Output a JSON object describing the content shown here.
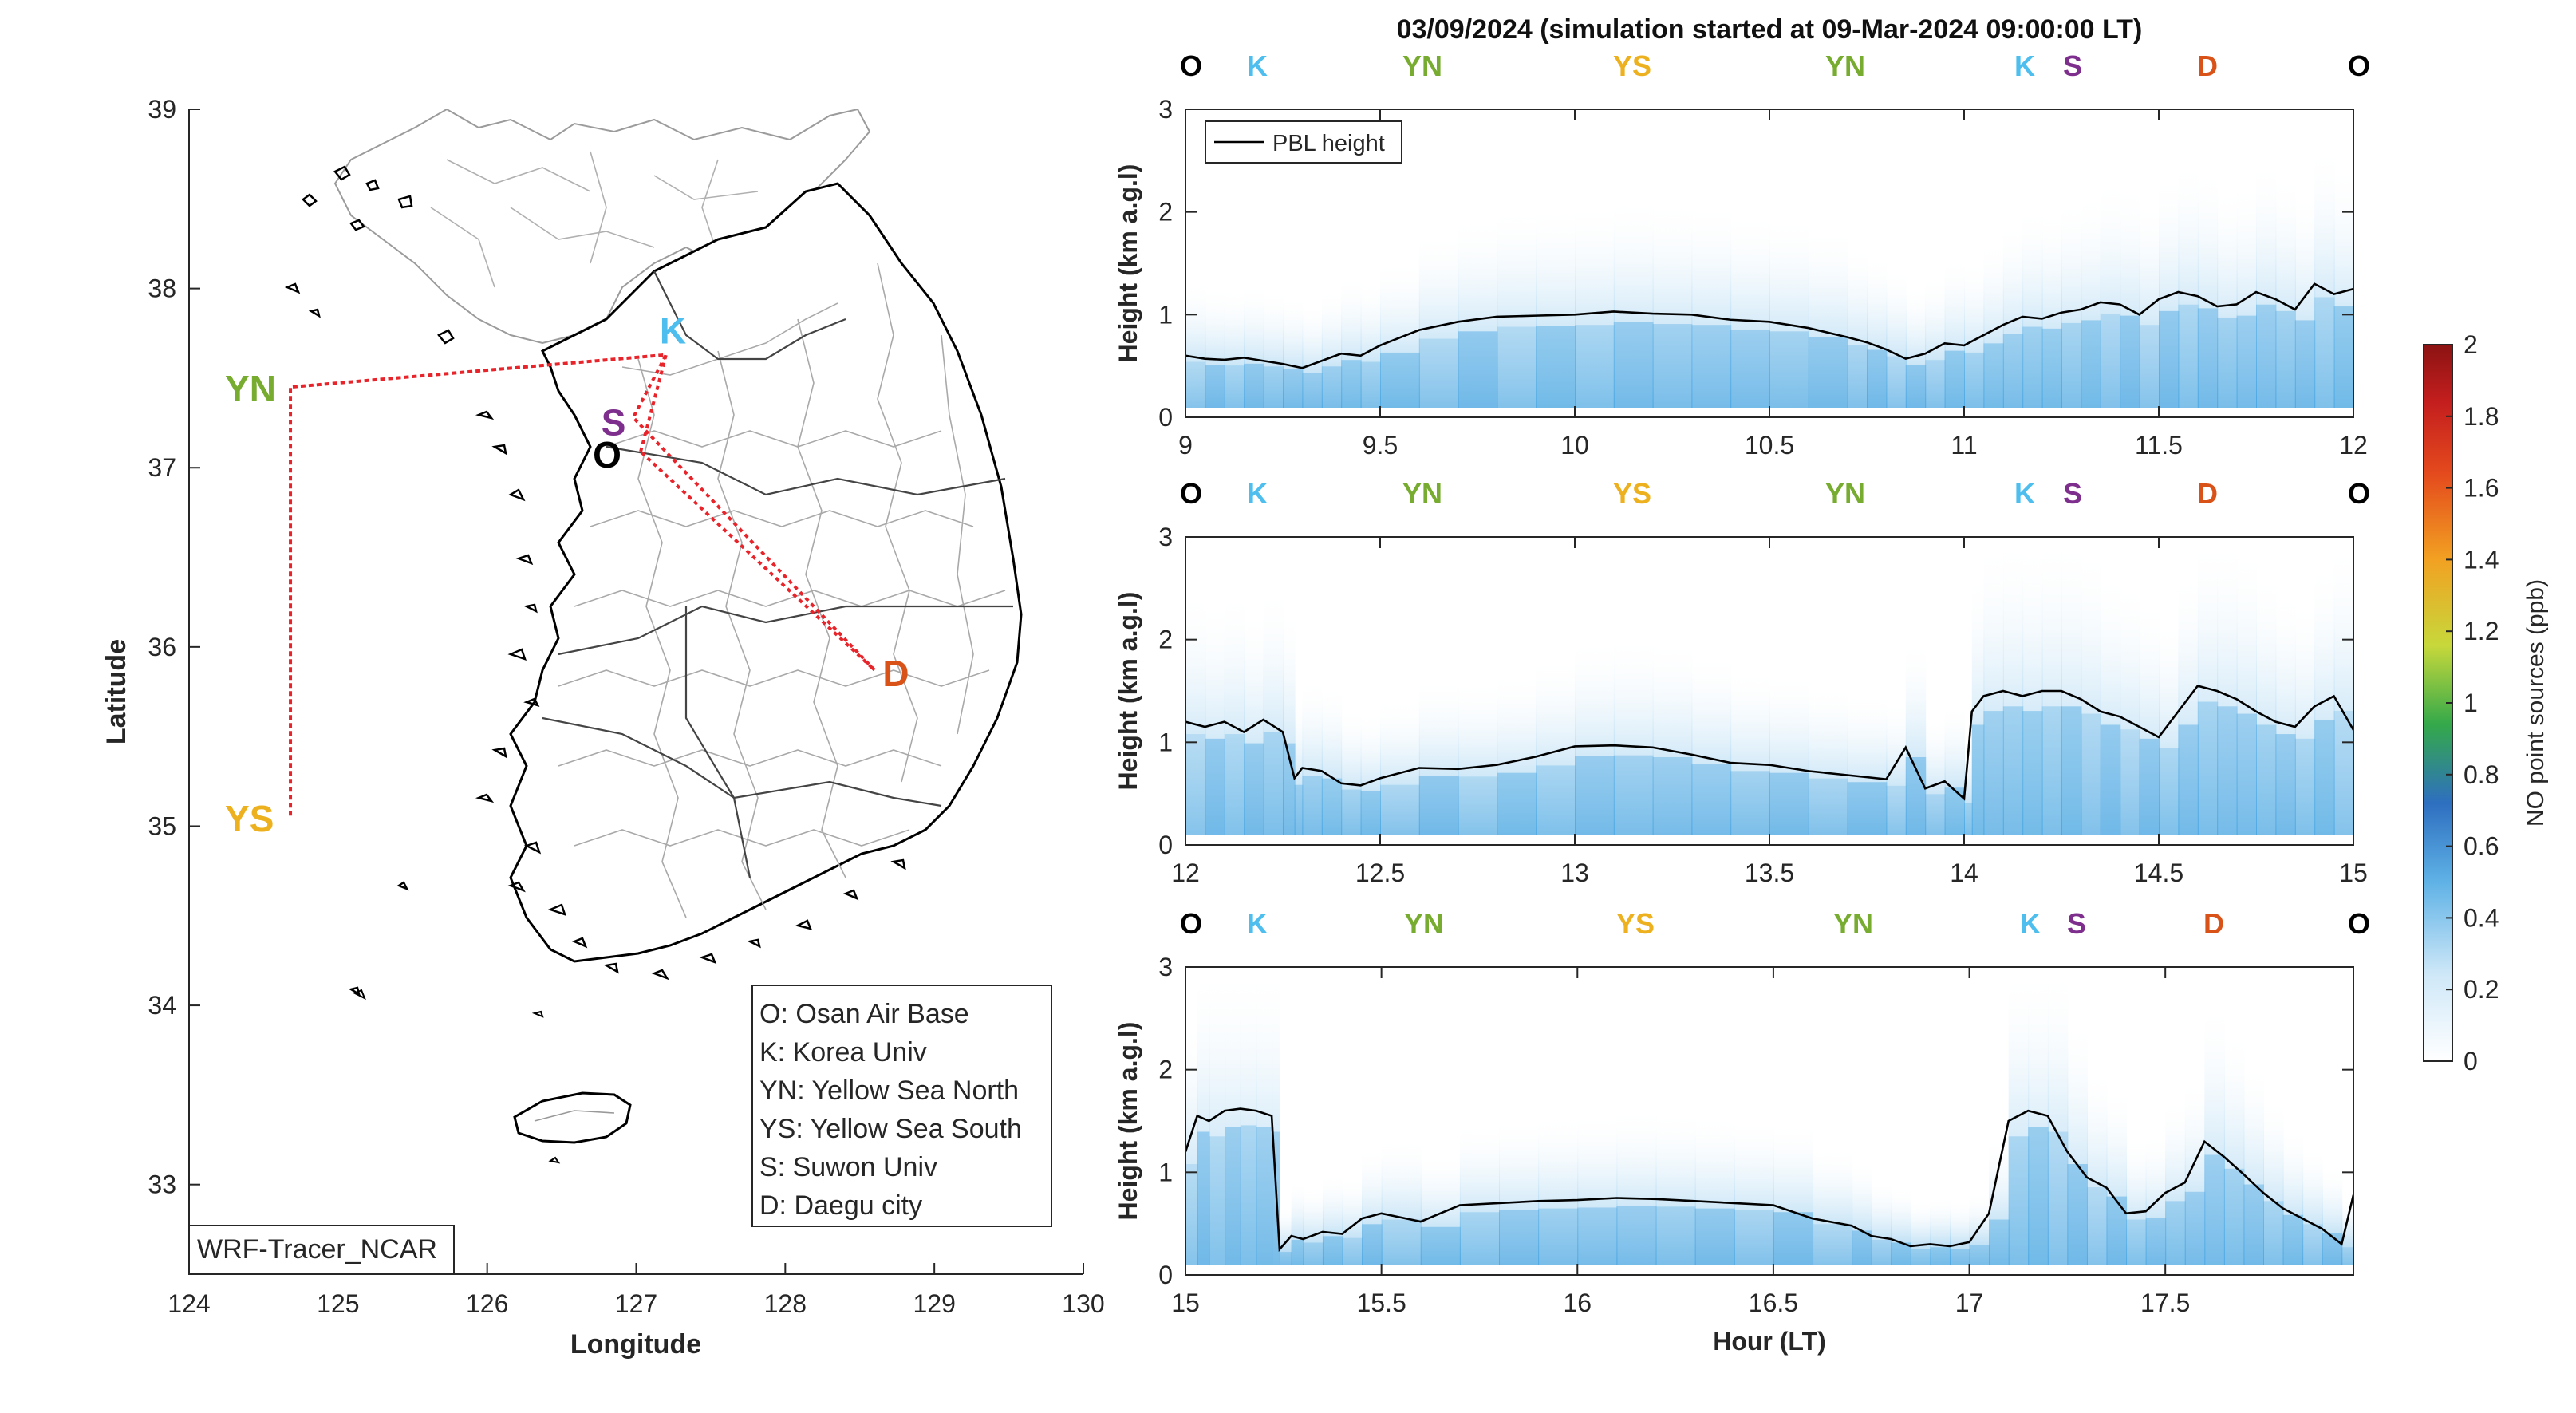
{
  "figure_title": "03/09/2024 (simulation started at 09-Mar-2024 09:00:00 LT)",
  "colors": {
    "site_O": "#000000",
    "site_K": "#4DBEEE",
    "site_YN": "#77AC30",
    "site_YS": "#EDB120",
    "site_S": "#7E2F8E",
    "site_D": "#D95319",
    "route": "#E8242B",
    "pbl": "#000000",
    "tracer": "#3FA1E0"
  },
  "map": {
    "xlabel": "Longitude",
    "ylabel": "Latitude",
    "xlim": [
      124,
      130
    ],
    "ylim": [
      32.5,
      39
    ],
    "xticks": [
      "124",
      "125",
      "126",
      "127",
      "128",
      "129",
      "130"
    ],
    "yticks": [
      "33",
      "34",
      "35",
      "36",
      "37",
      "38",
      "39"
    ],
    "model_tag": "WRF-Tracer_NCAR",
    "legend": [
      "O: Osan Air Base",
      "K: Korea Univ",
      "YN: Yellow Sea North",
      "YS: Yellow Sea South",
      "S: Suwon Univ",
      "D: Daegu city"
    ],
    "sites": [
      {
        "code": "K",
        "lon": 127.2,
        "lat": 37.63
      },
      {
        "code": "YN",
        "lon": 124.68,
        "lat": 37.45
      },
      {
        "code": "S",
        "lon": 126.98,
        "lat": 37.28
      },
      {
        "code": "O",
        "lon": 127.03,
        "lat": 37.09
      },
      {
        "code": "YS",
        "lon": 124.68,
        "lat": 35.05
      },
      {
        "code": "D",
        "lon": 128.6,
        "lat": 35.87
      }
    ],
    "route": [
      [
        127.03,
        37.09
      ],
      [
        127.2,
        37.63
      ],
      [
        124.68,
        37.45
      ],
      [
        124.68,
        35.05
      ],
      [
        124.68,
        37.45
      ],
      [
        127.2,
        37.63
      ],
      [
        126.98,
        37.28
      ],
      [
        128.6,
        35.87
      ],
      [
        127.03,
        37.09
      ]
    ]
  },
  "chart_data": [
    {
      "type": "line",
      "title": "03/09/2024 (simulation started at 09-Mar-2024 09:00:00 LT)",
      "xlabel": "",
      "ylabel": "Height (km a.g.l)",
      "xlim": [
        9,
        12
      ],
      "ylim": [
        0,
        3
      ],
      "xticks": [
        "9",
        "9.5",
        "10",
        "10.5",
        "11",
        "11.5",
        "12"
      ],
      "yticks": [
        "0",
        "1",
        "2",
        "3"
      ],
      "legend": "PBL height",
      "site_labels": [
        "O",
        "K",
        "YN",
        "YS",
        "YN",
        "K",
        "S",
        "D",
        "O"
      ],
      "series": [
        {
          "name": "PBL height",
          "x": [
            9.0,
            9.05,
            9.1,
            9.15,
            9.2,
            9.25,
            9.3,
            9.35,
            9.4,
            9.45,
            9.5,
            9.6,
            9.7,
            9.8,
            9.9,
            10.0,
            10.1,
            10.2,
            10.3,
            10.4,
            10.5,
            10.6,
            10.7,
            10.75,
            10.8,
            10.85,
            10.9,
            10.95,
            11.0,
            11.05,
            11.1,
            11.15,
            11.2,
            11.25,
            11.3,
            11.35,
            11.4,
            11.45,
            11.5,
            11.55,
            11.6,
            11.65,
            11.7,
            11.75,
            11.8,
            11.85,
            11.9,
            11.95,
            12.0
          ],
          "y": [
            0.6,
            0.57,
            0.56,
            0.58,
            0.55,
            0.52,
            0.48,
            0.55,
            0.62,
            0.6,
            0.7,
            0.85,
            0.93,
            0.98,
            0.99,
            1.0,
            1.03,
            1.01,
            1.0,
            0.95,
            0.93,
            0.87,
            0.78,
            0.73,
            0.66,
            0.57,
            0.62,
            0.72,
            0.7,
            0.8,
            0.9,
            0.98,
            0.96,
            1.02,
            1.05,
            1.12,
            1.1,
            1.0,
            1.15,
            1.22,
            1.18,
            1.08,
            1.1,
            1.22,
            1.15,
            1.05,
            1.3,
            1.2,
            1.25
          ]
        }
      ]
    },
    {
      "type": "line",
      "xlabel": "",
      "ylabel": "Height (km a.g.l)",
      "xlim": [
        12,
        15
      ],
      "ylim": [
        0,
        3
      ],
      "xticks": [
        "12",
        "12.5",
        "13",
        "13.5",
        "14",
        "14.5",
        "15"
      ],
      "yticks": [
        "0",
        "1",
        "2",
        "3"
      ],
      "site_labels": [
        "O",
        "K",
        "YN",
        "YS",
        "YN",
        "K",
        "S",
        "D",
        "O"
      ],
      "series": [
        {
          "name": "PBL height",
          "x": [
            12.0,
            12.05,
            12.1,
            12.15,
            12.2,
            12.25,
            12.28,
            12.3,
            12.35,
            12.4,
            12.45,
            12.5,
            12.6,
            12.7,
            12.8,
            12.9,
            13.0,
            13.1,
            13.2,
            13.3,
            13.4,
            13.5,
            13.6,
            13.7,
            13.8,
            13.85,
            13.9,
            13.95,
            14.0,
            14.02,
            14.05,
            14.1,
            14.15,
            14.2,
            14.25,
            14.3,
            14.35,
            14.4,
            14.45,
            14.5,
            14.55,
            14.6,
            14.65,
            14.7,
            14.75,
            14.8,
            14.85,
            14.9,
            14.95,
            15.0
          ],
          "y": [
            1.2,
            1.15,
            1.2,
            1.1,
            1.22,
            1.1,
            0.65,
            0.75,
            0.72,
            0.6,
            0.58,
            0.65,
            0.75,
            0.74,
            0.78,
            0.86,
            0.96,
            0.97,
            0.95,
            0.88,
            0.8,
            0.78,
            0.72,
            0.68,
            0.64,
            0.95,
            0.55,
            0.62,
            0.45,
            1.3,
            1.45,
            1.5,
            1.45,
            1.5,
            1.5,
            1.42,
            1.3,
            1.25,
            1.15,
            1.05,
            1.3,
            1.55,
            1.5,
            1.42,
            1.3,
            1.2,
            1.15,
            1.35,
            1.45,
            1.12
          ]
        }
      ]
    },
    {
      "type": "line",
      "xlabel": "Hour (LT)",
      "ylabel": "Height (km a.g.l)",
      "xlim": [
        15,
        17.98
      ],
      "ylim": [
        0,
        3
      ],
      "xticks": [
        "15",
        "15.5",
        "16",
        "16.5",
        "17",
        "17.5"
      ],
      "yticks": [
        "0",
        "1",
        "2",
        "3"
      ],
      "site_labels": [
        "O",
        "K",
        "YN",
        "YS",
        "YN",
        "K",
        "S",
        "D",
        "O"
      ],
      "series": [
        {
          "name": "PBL height",
          "x": [
            15.0,
            15.03,
            15.06,
            15.1,
            15.14,
            15.18,
            15.22,
            15.24,
            15.27,
            15.3,
            15.35,
            15.4,
            15.45,
            15.5,
            15.6,
            15.7,
            15.8,
            15.9,
            16.0,
            16.1,
            16.2,
            16.3,
            16.4,
            16.5,
            16.6,
            16.7,
            16.75,
            16.8,
            16.85,
            16.9,
            16.95,
            17.0,
            17.05,
            17.1,
            17.15,
            17.2,
            17.25,
            17.3,
            17.35,
            17.4,
            17.45,
            17.5,
            17.55,
            17.6,
            17.65,
            17.7,
            17.75,
            17.8,
            17.85,
            17.9,
            17.95,
            17.98
          ],
          "y": [
            1.2,
            1.55,
            1.5,
            1.6,
            1.62,
            1.6,
            1.55,
            0.25,
            0.38,
            0.35,
            0.42,
            0.4,
            0.55,
            0.6,
            0.52,
            0.68,
            0.7,
            0.72,
            0.73,
            0.75,
            0.74,
            0.72,
            0.7,
            0.68,
            0.55,
            0.48,
            0.38,
            0.35,
            0.28,
            0.3,
            0.28,
            0.32,
            0.6,
            1.5,
            1.6,
            1.55,
            1.2,
            0.95,
            0.85,
            0.6,
            0.62,
            0.8,
            0.9,
            1.3,
            1.15,
            0.98,
            0.8,
            0.65,
            0.55,
            0.45,
            0.3,
            0.78
          ]
        }
      ]
    }
  ],
  "colorbar": {
    "label": "NO point sources (ppb)",
    "limits": [
      0,
      2
    ],
    "ticks": [
      "0",
      "0.2",
      "0.4",
      "0.6",
      "0.8",
      "1",
      "1.2",
      "1.4",
      "1.6",
      "1.8",
      "2"
    ]
  }
}
